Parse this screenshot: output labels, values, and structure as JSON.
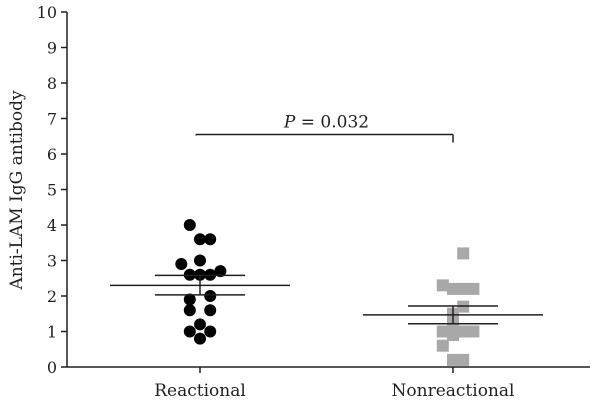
{
  "chart_data": {
    "type": "scatter",
    "ylabel": "Anti-LAM IgG antibody",
    "xlabel": "",
    "ylim": [
      0,
      10
    ],
    "yticks": [
      0,
      1,
      2,
      3,
      4,
      5,
      6,
      7,
      8,
      9,
      10
    ],
    "categories": [
      "Reactional",
      "Nonreactional"
    ],
    "grid": false,
    "annotation": {
      "p_symbol": "P",
      "p_rest": " = 0.032",
      "between": [
        "Reactional",
        "Nonreactional"
      ],
      "y": 6.55
    },
    "colors": {
      "reactional": "#000000",
      "nonreactional": "#a8a8a8",
      "axis": "#231f20"
    },
    "series": [
      {
        "category": "Reactional",
        "marker": "circle",
        "mean": 2.3,
        "sem_upper": 2.58,
        "sem_lower": 2.03,
        "points": [
          {
            "offset": -0.3,
            "y": 4.0
          },
          {
            "offset": 0.0,
            "y": 3.6
          },
          {
            "offset": 0.3,
            "y": 3.6
          },
          {
            "offset": -0.55,
            "y": 2.9
          },
          {
            "offset": 0.0,
            "y": 3.0
          },
          {
            "offset": -0.3,
            "y": 2.6
          },
          {
            "offset": 0.0,
            "y": 2.6
          },
          {
            "offset": 0.3,
            "y": 2.6
          },
          {
            "offset": 0.6,
            "y": 2.7
          },
          {
            "offset": -0.3,
            "y": 1.9
          },
          {
            "offset": 0.3,
            "y": 2.0
          },
          {
            "offset": -0.3,
            "y": 1.6
          },
          {
            "offset": 0.3,
            "y": 1.6
          },
          {
            "offset": 0.0,
            "y": 1.2
          },
          {
            "offset": -0.3,
            "y": 1.0
          },
          {
            "offset": 0.3,
            "y": 1.0
          },
          {
            "offset": 0.0,
            "y": 0.8
          }
        ]
      },
      {
        "category": "Nonreactional",
        "marker": "square",
        "mean": 1.47,
        "sem_upper": 1.72,
        "sem_lower": 1.22,
        "points": [
          {
            "offset": 0.3,
            "y": 3.2
          },
          {
            "offset": -0.3,
            "y": 2.3
          },
          {
            "offset": 0.0,
            "y": 2.2
          },
          {
            "offset": 0.3,
            "y": 2.2
          },
          {
            "offset": 0.6,
            "y": 2.2
          },
          {
            "offset": 0.3,
            "y": 1.7
          },
          {
            "offset": 0.0,
            "y": 1.5
          },
          {
            "offset": 0.0,
            "y": 1.2
          },
          {
            "offset": -0.3,
            "y": 1.0
          },
          {
            "offset": 0.3,
            "y": 1.0
          },
          {
            "offset": 0.6,
            "y": 1.0
          },
          {
            "offset": 0.0,
            "y": 0.9
          },
          {
            "offset": -0.3,
            "y": 0.6
          },
          {
            "offset": 0.0,
            "y": 0.2
          },
          {
            "offset": 0.3,
            "y": 0.2
          }
        ]
      }
    ]
  }
}
